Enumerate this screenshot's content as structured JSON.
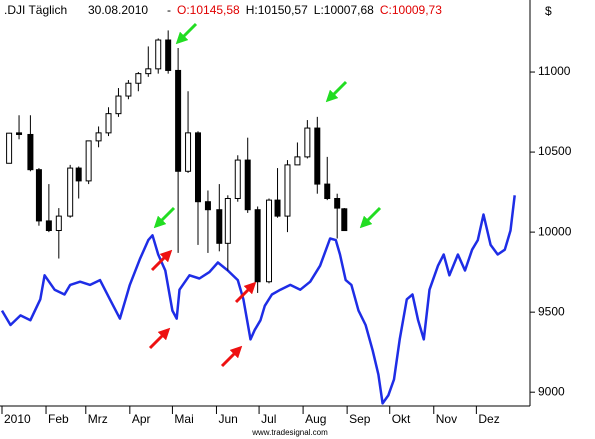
{
  "chart_data": {
    "type": "candlestick",
    "title": ".DJI Täglich",
    "date": "30.08.2010",
    "separator": "-",
    "ohlc_labels": [
      {
        "text": "O:10145,58",
        "color": "#e00000"
      },
      {
        "text": "H:10150,57",
        "color": "#000000"
      },
      {
        "text": "L:10007,68",
        "color": "#000000"
      },
      {
        "text": "C:10009,73",
        "color": "#e00000"
      }
    ],
    "y_unit": "$",
    "footer": "www.tradesignal.com",
    "up_color": "#ffffff",
    "down_color": "#000000",
    "wick_color": "#000000",
    "x": [
      5,
      12,
      20,
      26,
      33,
      40,
      48,
      54,
      61,
      68,
      75,
      82,
      89,
      96,
      103,
      110,
      117,
      124,
      131,
      138,
      145,
      153,
      159,
      166,
      173,
      180,
      188,
      194,
      201,
      208,
      215,
      222,
      229,
      236,
      241
    ],
    "open": [
      10430,
      10620,
      10610,
      10390,
      10070,
      10010,
      10100,
      10400,
      10320,
      10570,
      10620,
      10740,
      10850,
      10930,
      10990,
      11020,
      11200,
      11010,
      10380,
      10620,
      10190,
      10140,
      9930,
      10210,
      10450,
      10140,
      9690,
      10200,
      10100,
      10420,
      10470,
      10650,
      10300,
      10210,
      10145.58
    ],
    "high": [
      10620,
      10730,
      10730,
      10400,
      10300,
      10150,
      10420,
      10410,
      10570,
      10660,
      10780,
      10900,
      10950,
      11000,
      11160,
      11210,
      11260,
      11150,
      10880,
      10630,
      10260,
      10300,
      10230,
      10480,
      10590,
      10160,
      10210,
      10400,
      10450,
      10560,
      10700,
      10720,
      10470,
      10240,
      10150.57
    ],
    "low": [
      10430,
      10580,
      10380,
      10040,
      10000,
      9835,
      10090,
      10210,
      10300,
      10530,
      10600,
      10720,
      10830,
      10880,
      10970,
      10990,
      10990,
      9870,
      10370,
      9920,
      9870,
      9880,
      9760,
      10190,
      10120,
      9620,
      9680,
      10090,
      10000,
      10420,
      10460,
      10240,
      10200,
      9960,
      10007.68
    ],
    "close": [
      10618,
      10610,
      10390,
      10070,
      10010,
      10100,
      10400,
      10320,
      10570,
      10620,
      10740,
      10850,
      10930,
      10990,
      11020,
      11200,
      11010,
      10380,
      10620,
      10190,
      10140,
      9930,
      10210,
      10450,
      10140,
      9690,
      10200,
      10100,
      10420,
      10470,
      10650,
      10300,
      10210,
      10150,
      10009.73
    ],
    "overlay": {
      "type": "line",
      "color": "#1e2de6",
      "x": [
        0,
        6,
        13,
        20,
        27,
        30,
        37,
        44,
        48,
        55,
        62,
        69,
        76,
        83,
        87,
        90,
        97,
        103,
        106,
        110,
        115,
        120,
        123,
        125,
        132,
        139,
        146,
        152,
        159,
        166,
        170,
        175,
        178,
        182,
        185,
        190,
        196,
        203,
        210,
        217,
        224,
        231,
        235,
        238,
        242,
        246,
        251,
        256,
        261,
        265,
        268,
        272,
        276,
        280,
        285,
        289,
        293,
        297,
        301,
        307,
        311,
        315,
        321,
        326,
        331,
        335,
        339,
        344,
        349,
        354,
        358,
        361
      ],
      "values": [
        9510,
        9420,
        9480,
        9450,
        9580,
        9730,
        9640,
        9610,
        9670,
        9690,
        9670,
        9700,
        9580,
        9460,
        9580,
        9670,
        9830,
        9950,
        9980,
        9860,
        9760,
        9510,
        9460,
        9640,
        9730,
        9710,
        9750,
        9810,
        9760,
        9700,
        9580,
        9330,
        9390,
        9450,
        9540,
        9610,
        9640,
        9670,
        9640,
        9690,
        9790,
        9960,
        9950,
        9860,
        9700,
        9670,
        9510,
        9420,
        9260,
        9110,
        8930,
        8980,
        9080,
        9330,
        9580,
        9610,
        9450,
        9330,
        9640,
        9790,
        9860,
        9730,
        9860,
        9760,
        9890,
        9950,
        10110,
        9920,
        9860,
        9890,
        10010,
        10230
      ]
    },
    "xlim": [
      0,
      370
    ],
    "ylim": [
      8920,
      11450
    ],
    "yticks": [
      9000,
      9500,
      10000,
      10500,
      11000
    ],
    "xticks": [
      {
        "value": 0,
        "label": "2010"
      },
      {
        "value": 31,
        "label": "Feb"
      },
      {
        "value": 59,
        "label": "Mrz"
      },
      {
        "value": 90,
        "label": "Apr"
      },
      {
        "value": 120,
        "label": "Mai"
      },
      {
        "value": 151,
        "label": "Jun"
      },
      {
        "value": 181,
        "label": "Jul"
      },
      {
        "value": 212,
        "label": "Aug"
      },
      {
        "value": 243,
        "label": "Sep"
      },
      {
        "value": 273,
        "label": "Okt"
      },
      {
        "value": 304,
        "label": "Nov"
      },
      {
        "value": 334,
        "label": "Dez"
      }
    ]
  }
}
